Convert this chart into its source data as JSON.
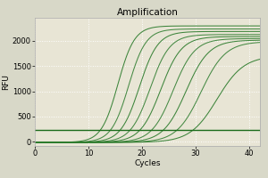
{
  "title": "Amplification",
  "xlabel": "Cycles",
  "ylabel": "RFU",
  "xlim": [
    0,
    42
  ],
  "ylim": [
    -80,
    2450
  ],
  "xticks": [
    0,
    10,
    20,
    30,
    40
  ],
  "yticks": [
    0,
    500,
    1000,
    1500,
    2000
  ],
  "background_color": "#d8d8c8",
  "plot_bg_color": "#e8e5d5",
  "grid_color": "#ffffff",
  "flat_line_y": 230,
  "sigmoid_curves": [
    {
      "midpoint": 15.5,
      "steepness": 0.65,
      "plateau": 2290,
      "baseline": -10,
      "color": "#2a7a2a"
    },
    {
      "midpoint": 17.5,
      "steepness": 0.62,
      "plateau": 2230,
      "baseline": -10,
      "color": "#348034"
    },
    {
      "midpoint": 19.5,
      "steepness": 0.58,
      "plateau": 2180,
      "baseline": -10,
      "color": "#2a7a2a"
    },
    {
      "midpoint": 21.5,
      "steepness": 0.55,
      "plateau": 2120,
      "baseline": -10,
      "color": "#348034"
    },
    {
      "midpoint": 23.5,
      "steepness": 0.52,
      "plateau": 2080,
      "baseline": -10,
      "color": "#2a7a2a"
    },
    {
      "midpoint": 25.8,
      "steepness": 0.5,
      "plateau": 2040,
      "baseline": -10,
      "color": "#348034"
    },
    {
      "midpoint": 28.2,
      "steepness": 0.47,
      "plateau": 2010,
      "baseline": -10,
      "color": "#2a7a2a"
    },
    {
      "midpoint": 31.0,
      "steepness": 0.44,
      "plateau": 1980,
      "baseline": -10,
      "color": "#348034"
    },
    {
      "midpoint": 34.0,
      "steepness": 0.4,
      "plateau": 1700,
      "baseline": -10,
      "color": "#2a7a2a"
    }
  ],
  "flat_line_color": "#1a6b1a",
  "title_fontsize": 7.5,
  "axis_fontsize": 6.5,
  "tick_fontsize": 6,
  "figsize": [
    3.0,
    2.0
  ],
  "dpi": 100
}
